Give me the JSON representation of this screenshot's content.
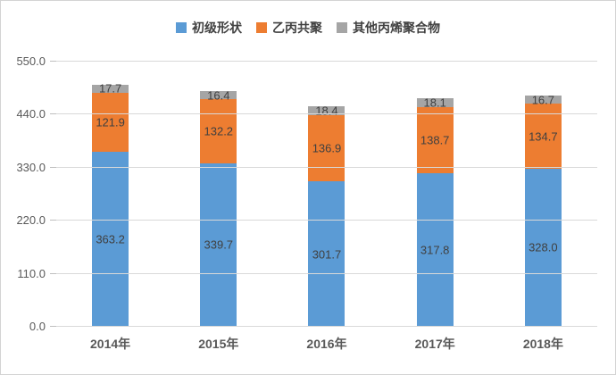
{
  "chart_data": {
    "type": "bar",
    "stacked": true,
    "title": "",
    "xlabel": "",
    "ylabel": "",
    "categories": [
      "2014年",
      "2015年",
      "2016年",
      "2017年",
      "2018年"
    ],
    "series": [
      {
        "name": "初级形状",
        "color": "#5B9BD5",
        "values": [
          363.2,
          339.7,
          301.7,
          317.8,
          328.0
        ],
        "labels": [
          "363.2",
          "339.7",
          "301.7",
          "317.8",
          "328.0"
        ]
      },
      {
        "name": "乙丙共聚",
        "color": "#ED7D31",
        "values": [
          121.9,
          132.2,
          136.9,
          138.7,
          134.7
        ],
        "labels": [
          "121.9",
          "132.2",
          "136.9",
          "138.7",
          "134.7"
        ]
      },
      {
        "name": "其他丙烯聚合物",
        "color": "#A5A5A5",
        "values": [
          17.7,
          16.4,
          18.4,
          18.1,
          16.7
        ],
        "labels": [
          "17.7",
          "16.4",
          "18.4",
          "18.1",
          "16.7"
        ]
      }
    ],
    "ylim": [
      0,
      550
    ],
    "yticks": [
      0,
      110,
      220,
      330,
      440,
      550
    ],
    "ytick_labels": [
      "0.0",
      "110.0",
      "220.0",
      "330.0",
      "440.0",
      "550.0"
    ],
    "grid": true,
    "legend_position": "top"
  },
  "colors": {
    "gridline": "#d9d9d9",
    "axis_text": "#595959",
    "label_text": "#404040",
    "border": "#d3d3d3"
  }
}
